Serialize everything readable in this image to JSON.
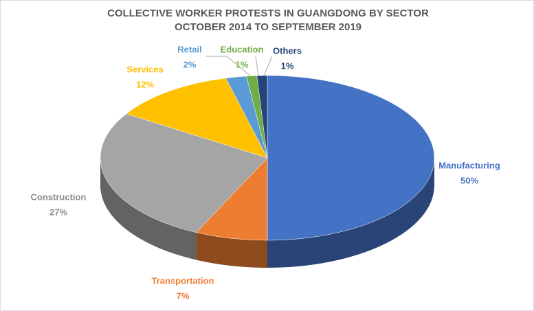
{
  "chart_data": {
    "type": "pie",
    "title": "COLLECTIVE WORKER PROTESTS IN GUANGDONG BY SECTOR OCTOBER 2014 TO SEPTEMBER 2019",
    "categories": [
      "Manufacturing",
      "Transportation",
      "Construction",
      "Services",
      "Retail",
      "Education",
      "Others"
    ],
    "values": [
      50,
      7,
      27,
      12,
      2,
      1,
      1
    ],
    "value_labels": [
      "50%",
      "7%",
      "27%",
      "12%",
      "2%",
      "1%",
      "1%"
    ],
    "colors": [
      "#4472c4",
      "#ed7d31",
      "#a5a5a5",
      "#ffc000",
      "#5b9bd5",
      "#70ad47",
      "#264478"
    ]
  }
}
